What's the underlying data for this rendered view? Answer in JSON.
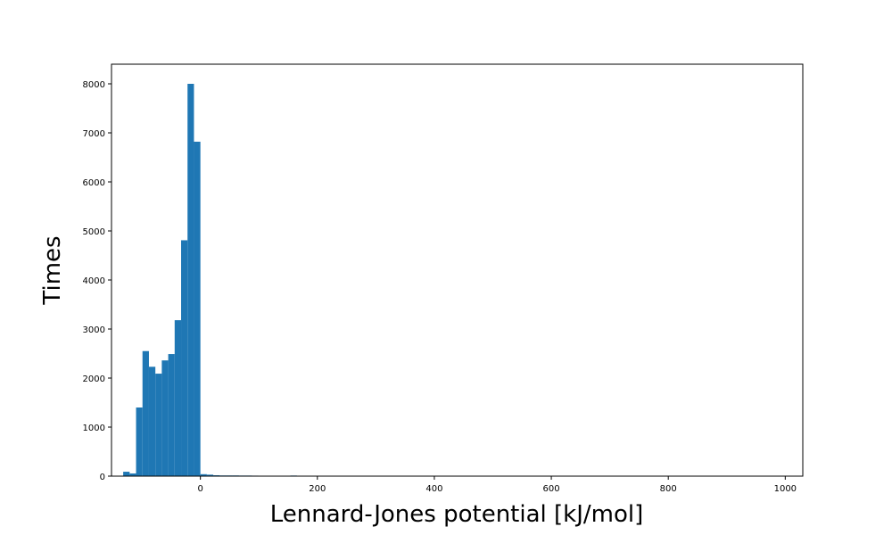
{
  "chart_data": {
    "type": "bar",
    "xlabel": "Lennard-Jones potential [kJ/mol]",
    "ylabel": "Times",
    "title": "",
    "xlim": [
      -152,
      1030
    ],
    "ylim": [
      0,
      8400
    ],
    "x_ticks": [
      0,
      200,
      400,
      600,
      800,
      1000
    ],
    "y_ticks": [
      0,
      1000,
      2000,
      3000,
      4000,
      5000,
      6000,
      7000,
      8000
    ],
    "grid": false,
    "bar_color": "#1f77b4",
    "bin_width": 11,
    "bins": [
      {
        "x0": -132,
        "value": 90
      },
      {
        "x0": -121,
        "value": 55
      },
      {
        "x0": -110,
        "value": 1400
      },
      {
        "x0": -99,
        "value": 2550
      },
      {
        "x0": -88,
        "value": 2230
      },
      {
        "x0": -77,
        "value": 2090
      },
      {
        "x0": -66,
        "value": 2360
      },
      {
        "x0": -55,
        "value": 2490
      },
      {
        "x0": -44,
        "value": 3180
      },
      {
        "x0": -33,
        "value": 4810
      },
      {
        "x0": -22,
        "value": 8000
      },
      {
        "x0": -11,
        "value": 6820
      },
      {
        "x0": 0,
        "value": 40
      },
      {
        "x0": 11,
        "value": 30
      },
      {
        "x0": 22,
        "value": 18
      },
      {
        "x0": 33,
        "value": 14
      },
      {
        "x0": 44,
        "value": 14
      },
      {
        "x0": 55,
        "value": 14
      },
      {
        "x0": 66,
        "value": 12
      },
      {
        "x0": 77,
        "value": 12
      },
      {
        "x0": 88,
        "value": 10
      },
      {
        "x0": 154,
        "value": 12
      },
      {
        "x0": 165,
        "value": 6
      }
    ]
  }
}
